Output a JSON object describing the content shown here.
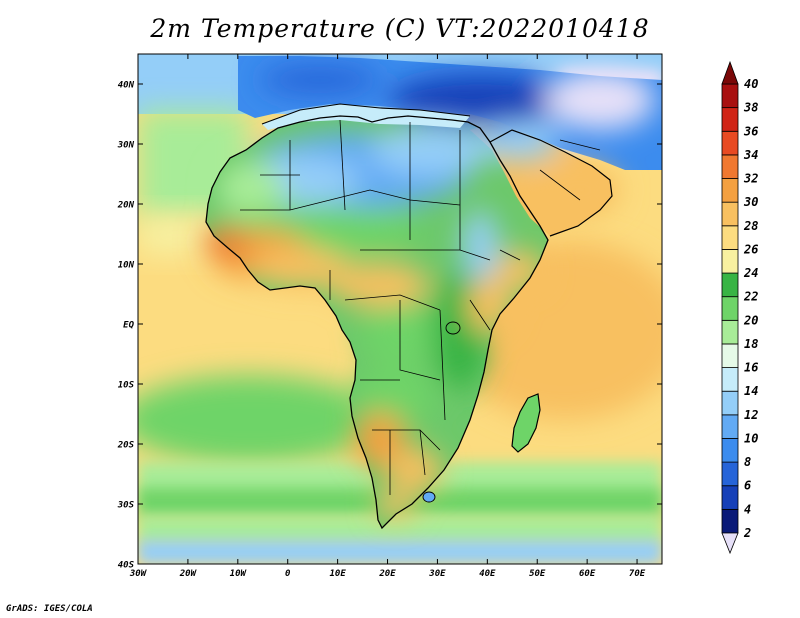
{
  "title": "2m Temperature (C) VT:2022010418",
  "credit": "GrADS: IGES/COLA",
  "map": {
    "lat_range": [
      -40,
      45
    ],
    "lon_range": [
      -30,
      75
    ],
    "lat_ticks": [
      {
        "value": 40,
        "label": "40N"
      },
      {
        "value": 30,
        "label": "30N"
      },
      {
        "value": 20,
        "label": "20N"
      },
      {
        "value": 10,
        "label": "10N"
      },
      {
        "value": 0,
        "label": "EQ"
      },
      {
        "value": -10,
        "label": "10S"
      },
      {
        "value": -20,
        "label": "20S"
      },
      {
        "value": -30,
        "label": "30S"
      },
      {
        "value": -40,
        "label": "40S"
      }
    ],
    "lon_ticks": [
      {
        "value": -30,
        "label": "30W"
      },
      {
        "value": -20,
        "label": "20W"
      },
      {
        "value": -10,
        "label": "10W"
      },
      {
        "value": 0,
        "label": "0"
      },
      {
        "value": 10,
        "label": "10E"
      },
      {
        "value": 20,
        "label": "20E"
      },
      {
        "value": 30,
        "label": "30E"
      },
      {
        "value": 40,
        "label": "40E"
      },
      {
        "value": 50,
        "label": "50E"
      },
      {
        "value": 60,
        "label": "60E"
      },
      {
        "value": 70,
        "label": "70E"
      }
    ]
  },
  "colorbar": {
    "labels": [
      "2",
      "4",
      "6",
      "8",
      "10",
      "12",
      "14",
      "16",
      "18",
      "20",
      "22",
      "24",
      "26",
      "28",
      "30",
      "32",
      "34",
      "36",
      "38",
      "40"
    ],
    "colors": [
      "#e6e0f8",
      "#0a1a78",
      "#1640b8",
      "#2664d8",
      "#3c8cee",
      "#62aaf4",
      "#94cef8",
      "#c6ecfa",
      "#e6fae8",
      "#a8ec98",
      "#6ed468",
      "#38b444",
      "#f8f0a0",
      "#fcdc80",
      "#f8c060",
      "#f4a040",
      "#f07830",
      "#e84a22",
      "#d02416",
      "#a81010",
      "#7a0808"
    ]
  },
  "land_color": "#6cc86a"
}
